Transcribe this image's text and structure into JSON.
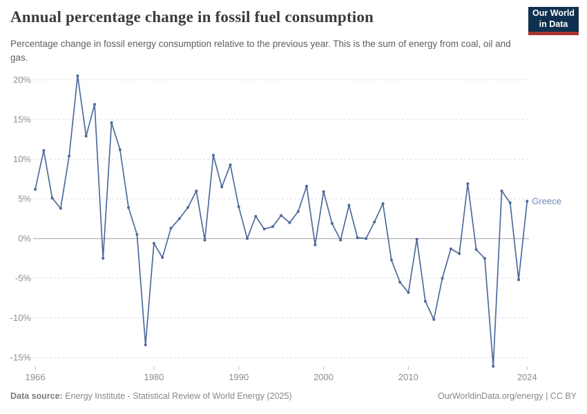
{
  "header": {
    "title": "Annual percentage change in fossil fuel consumption",
    "subtitle": "Percentage change in fossil energy consumption relative to the previous year. This is the sum of energy from coal, oil and gas.",
    "logo_line1": "Our World",
    "logo_line2": "in Data"
  },
  "chart_data": {
    "type": "line",
    "title": "Annual percentage change in fossil fuel consumption",
    "entity_label": "Greece",
    "x": [
      1966,
      1967,
      1968,
      1969,
      1970,
      1971,
      1972,
      1973,
      1974,
      1975,
      1976,
      1977,
      1978,
      1979,
      1980,
      1981,
      1982,
      1983,
      1984,
      1985,
      1986,
      1987,
      1988,
      1989,
      1990,
      1991,
      1992,
      1993,
      1994,
      1995,
      1996,
      1997,
      1998,
      1999,
      2000,
      2001,
      2002,
      2003,
      2004,
      2005,
      2006,
      2007,
      2008,
      2009,
      2010,
      2011,
      2012,
      2013,
      2014,
      2015,
      2016,
      2017,
      2018,
      2019,
      2020,
      2021,
      2022,
      2023,
      2024
    ],
    "values": [
      6.2,
      11.1,
      5.1,
      3.8,
      10.4,
      20.5,
      12.9,
      16.9,
      -2.5,
      14.6,
      11.2,
      3.9,
      0.5,
      -13.4,
      -0.6,
      -2.4,
      1.3,
      2.5,
      3.9,
      6.0,
      -0.2,
      10.5,
      6.5,
      9.3,
      4.0,
      0.0,
      2.8,
      1.2,
      1.5,
      2.9,
      2.0,
      3.4,
      6.6,
      -0.8,
      5.9,
      1.9,
      -0.2,
      4.2,
      0.1,
      0.0,
      2.1,
      4.4,
      -2.7,
      -5.5,
      -6.8,
      -0.1,
      -7.9,
      -10.2,
      -5.0,
      -1.3,
      -1.9,
      6.9,
      -1.4,
      -2.5,
      -16.1,
      6.0,
      4.5,
      -5.2,
      4.7
    ],
    "xlabel": "",
    "ylabel": "",
    "x_tick_years": [
      1966,
      1980,
      1990,
      2000,
      2010,
      2024
    ],
    "y_ticks": [
      20,
      15,
      10,
      5,
      0,
      -5,
      -10,
      -15
    ],
    "y_tick_labels": [
      "20%",
      "15%",
      "10%",
      "5%",
      "0%",
      "-5%",
      "-10%",
      "-15%"
    ],
    "ylim": [
      -17,
      21
    ],
    "xlim": [
      1966,
      2024
    ],
    "grid": "horizontal dashed, solid zero line",
    "legend_position": "end-of-line entity label",
    "line_color": "#4c6a9c",
    "entity_label_color": "#6787b7",
    "tick_color": "#8e8e8e"
  },
  "footer": {
    "source_label": "Data source:",
    "source_text": " Energy Institute - Statistical Review of World Energy (2025)",
    "credit": "OurWorldinData.org/energy | CC BY"
  }
}
